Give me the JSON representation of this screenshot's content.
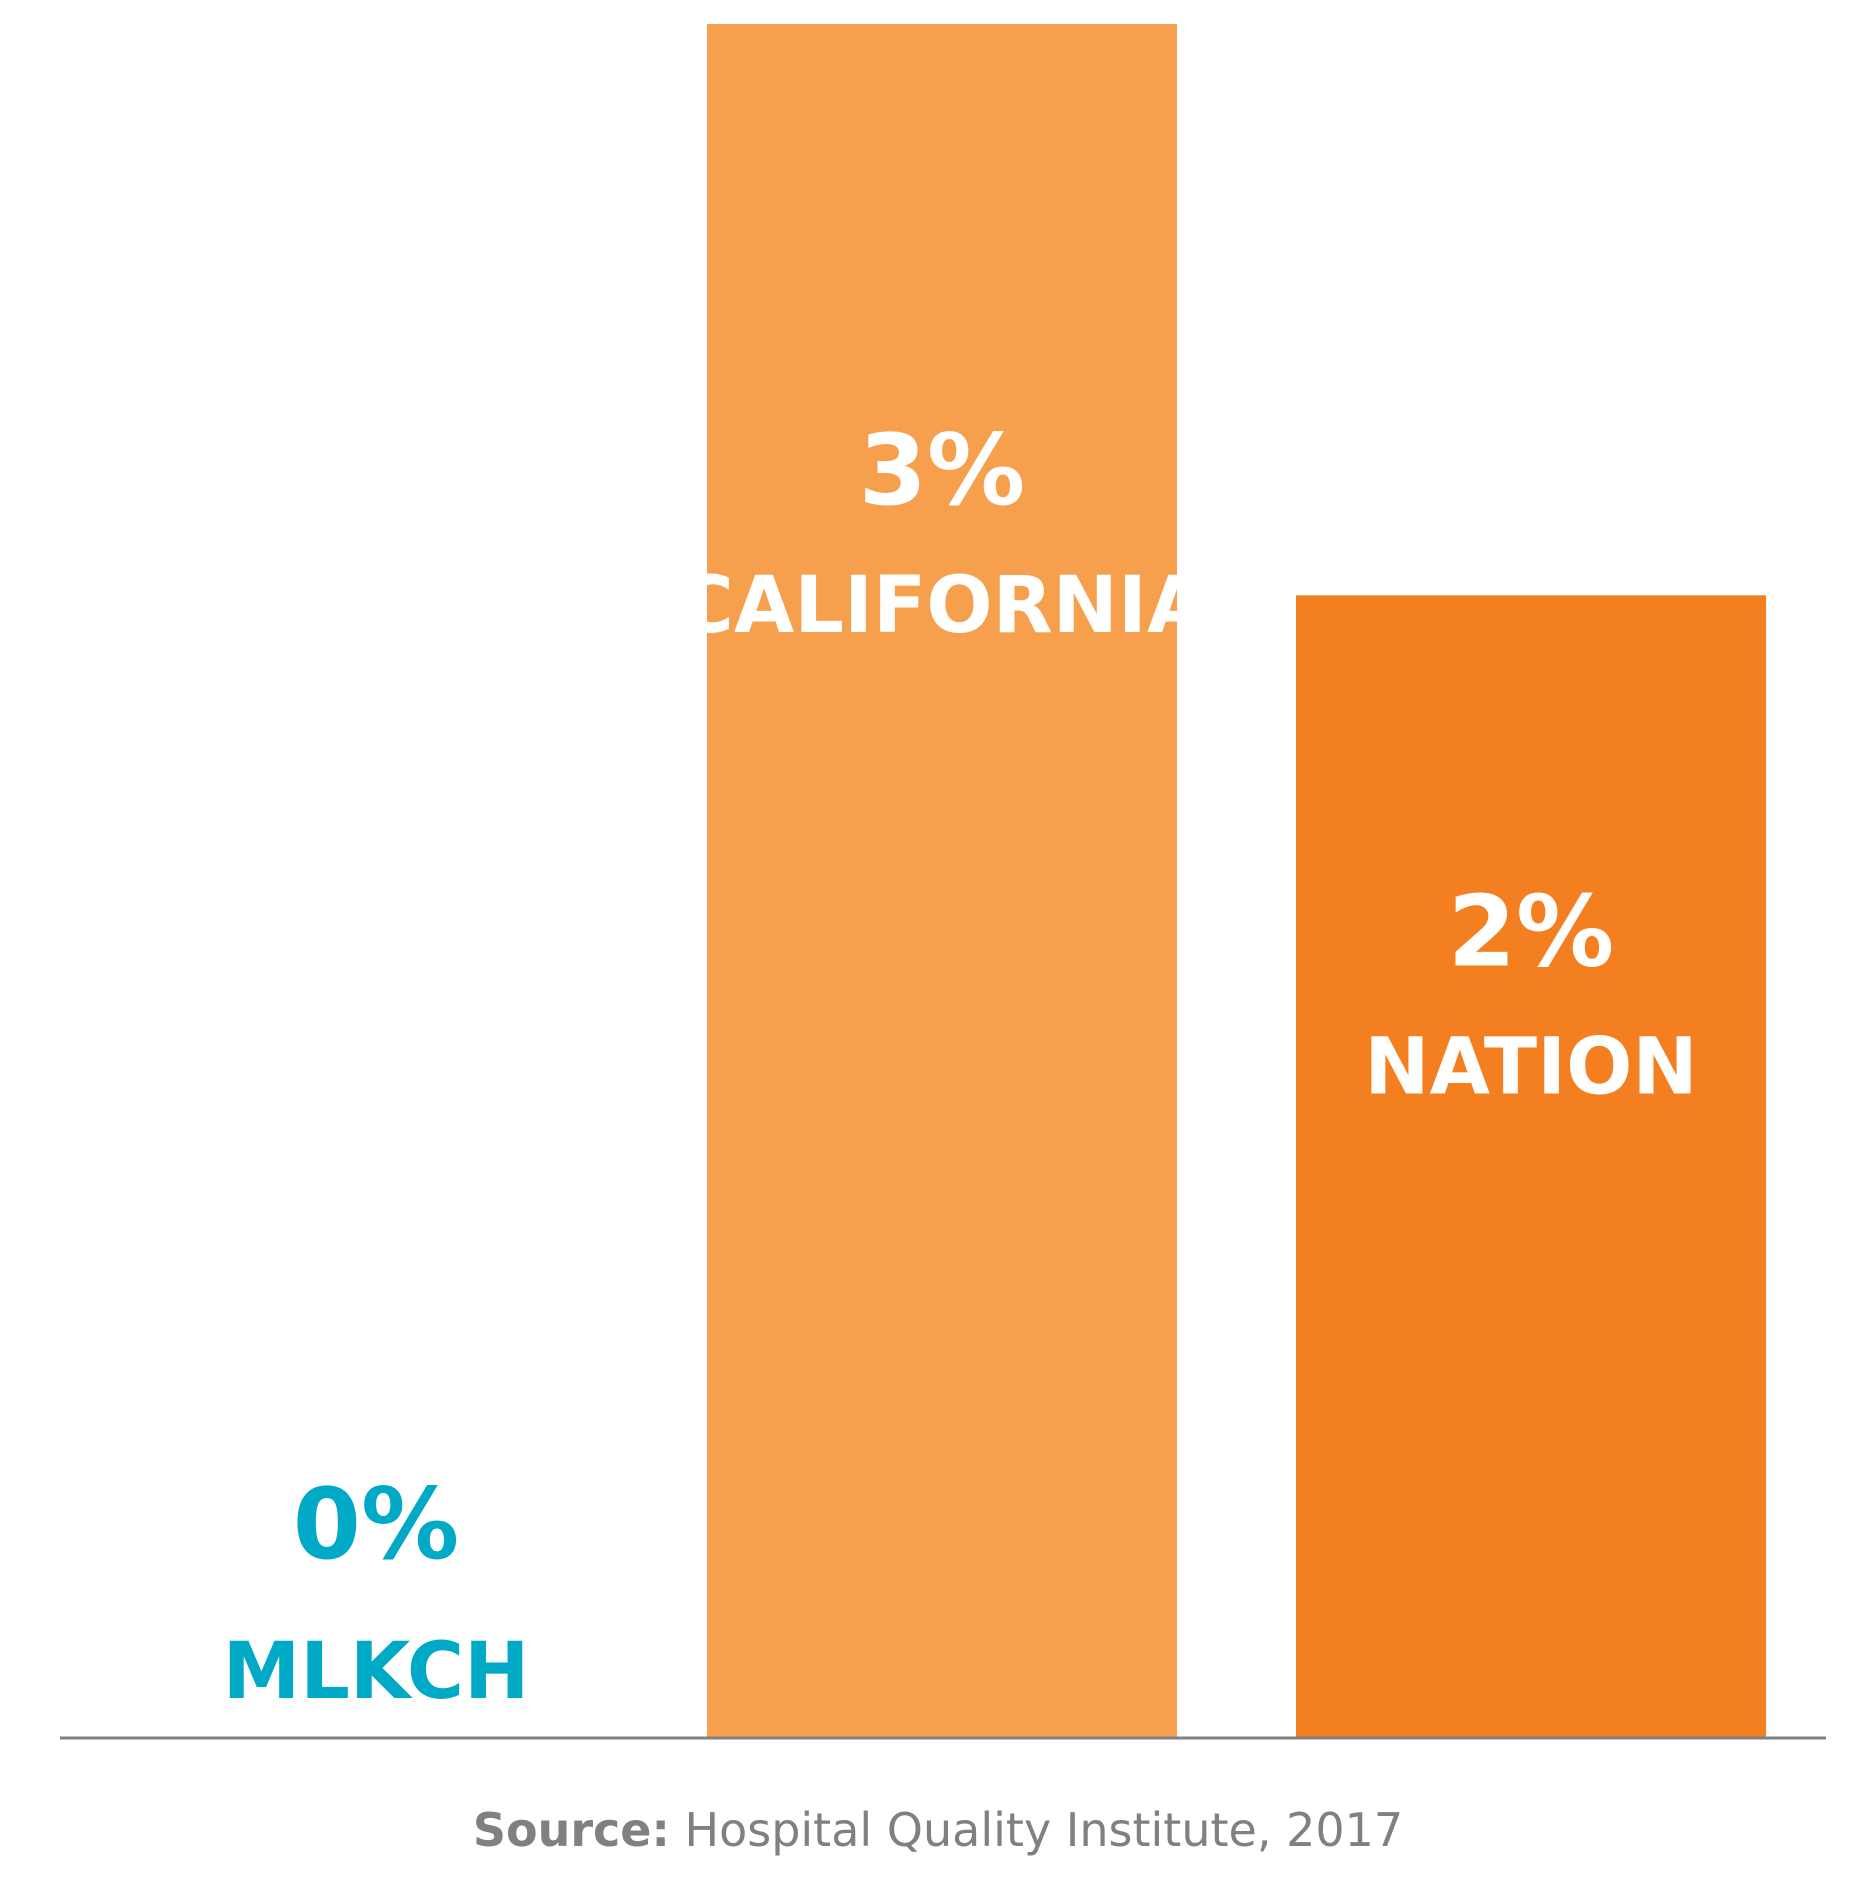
{
  "chart_data": {
    "type": "bar",
    "categories": [
      "MLKCH",
      "CALIFORNIA",
      "NATION"
    ],
    "values": [
      0,
      3,
      2
    ],
    "value_labels": [
      "0%",
      "3%",
      "2%"
    ],
    "unit": "%",
    "ylim": [
      0,
      3
    ],
    "grid": false,
    "bar_colors": [
      "#00a9c6",
      "#f6a04d",
      "#f47f21"
    ],
    "label_colors": [
      "#00a9c6",
      "#ffffff",
      "#ffffff"
    ],
    "axis_color": "#808080"
  },
  "source": {
    "label": "Source:",
    "text": " Hospital Quality Institute, 2017"
  }
}
